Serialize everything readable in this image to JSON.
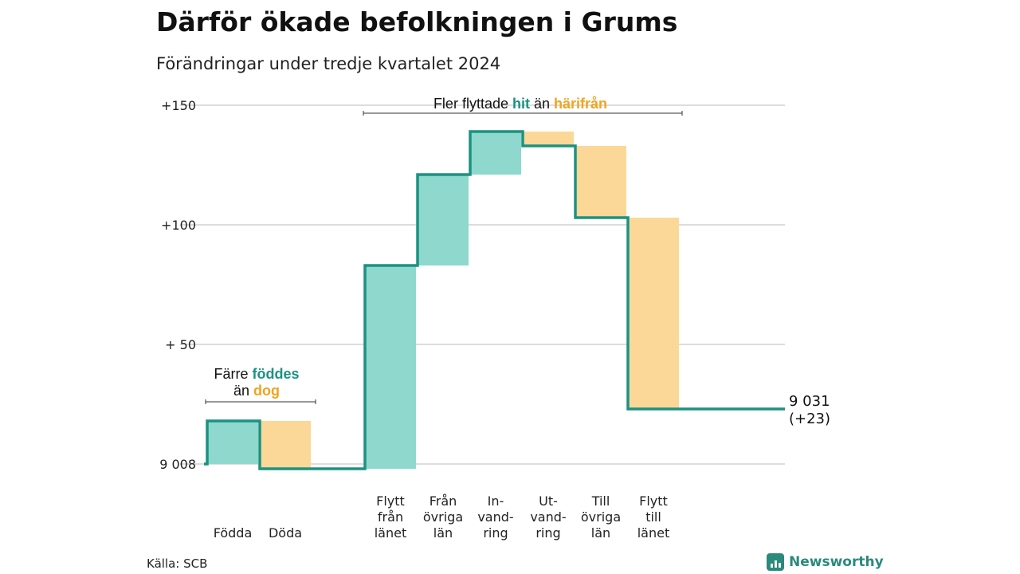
{
  "title": "Därför ökade befolkningen i Grums",
  "subtitle": "Förändringar under tredje kvartalet 2024",
  "source": "Källa: SCB",
  "brand": "Newsworthy",
  "colors": {
    "increase": "#8ed8cd",
    "decrease": "#fcd898",
    "line": "#1c9281",
    "hit": "#1c9281",
    "harifran": "#f0a420"
  },
  "chart_data": {
    "type": "waterfall",
    "base": 9008,
    "yticks": [
      {
        "value": 0,
        "label": "9 008"
      },
      {
        "value": 50,
        "label": "+ 50"
      },
      {
        "value": 100,
        "label": "+100"
      },
      {
        "value": 150,
        "label": "+150"
      }
    ],
    "ylim": [
      -5,
      155
    ],
    "grid": true,
    "steps": [
      {
        "label": [
          "Födda"
        ],
        "change": 18,
        "type": "increase"
      },
      {
        "label": [
          "Döda"
        ],
        "change": -20,
        "type": "decrease"
      },
      {
        "label": [
          "Flytt",
          "från",
          "länet"
        ],
        "change": 85,
        "type": "increase"
      },
      {
        "label": [
          "Från",
          "övriga",
          "län"
        ],
        "change": 38,
        "type": "increase"
      },
      {
        "label": [
          "In-",
          "vand-",
          "ring"
        ],
        "change": 18,
        "type": "increase"
      },
      {
        "label": [
          "Ut-",
          "vand-",
          "ring"
        ],
        "change": -6,
        "type": "decrease"
      },
      {
        "label": [
          "Till",
          "övriga",
          "län"
        ],
        "change": -30,
        "type": "decrease"
      },
      {
        "label": [
          "Flytt",
          "till",
          "länet"
        ],
        "change": -80,
        "type": "decrease"
      }
    ],
    "end_value_label": "9 031",
    "end_change_label": "(+23)",
    "annotations": [
      {
        "pre": "Färre",
        "word1": "föddes",
        "mid": "än",
        "word2": "dog"
      },
      {
        "pre": "Fler flyttade",
        "word1": "hit",
        "mid": "än",
        "word2": "härifrån"
      }
    ]
  }
}
